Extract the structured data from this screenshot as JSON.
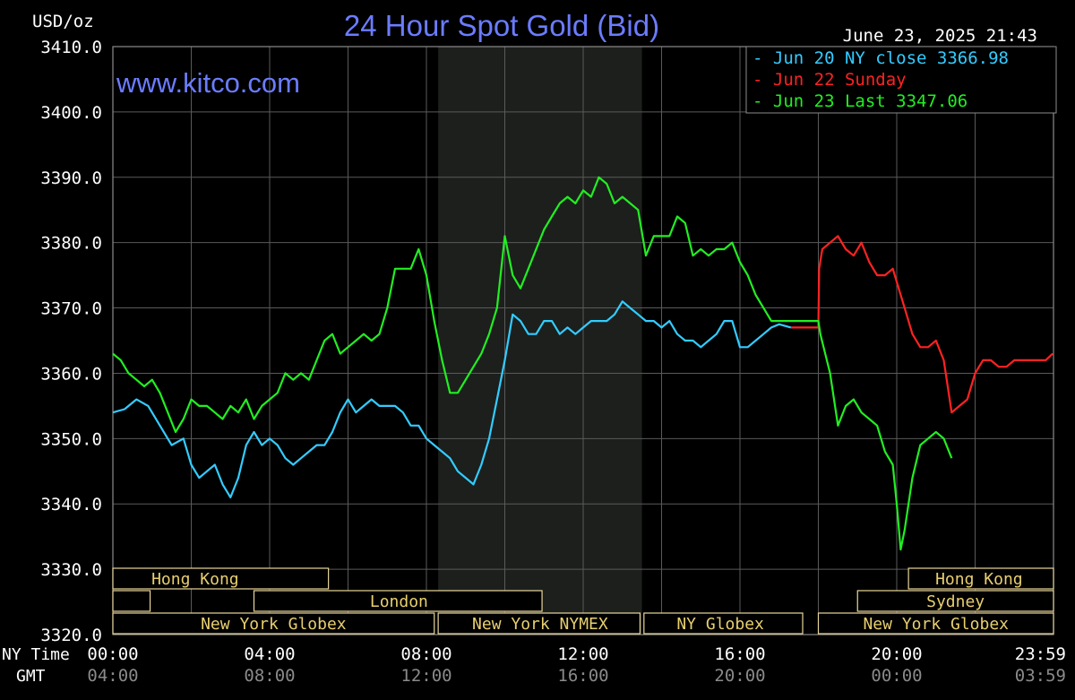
{
  "chart_data": {
    "type": "line",
    "title": "24 Hour Spot Gold (Bid)",
    "unit_label": "USD/oz",
    "timestamp": "June 23, 2025 21:43",
    "watermark": "www.kitco.com",
    "ylim": [
      3320,
      3410
    ],
    "y_ticks": [
      "3410.0",
      "3400.0",
      "3390.0",
      "3380.0",
      "3370.0",
      "3360.0",
      "3350.0",
      "3340.0",
      "3330.0",
      "3320.0"
    ],
    "xlim": [
      0,
      24
    ],
    "x_rows": [
      {
        "label": "NY Time",
        "ticks": [
          "00:00",
          "04:00",
          "08:00",
          "12:00",
          "16:00",
          "20:00",
          "23:59"
        ],
        "color": "#ffffff"
      },
      {
        "label": "GMT",
        "ticks": [
          "04:00",
          "08:00",
          "12:00",
          "16:00",
          "20:00",
          "00:00",
          "03:59"
        ],
        "color": "#8a8a8a"
      }
    ],
    "grid": true,
    "shaded_period": [
      8.3,
      13.5
    ],
    "legend_placement": "top-right",
    "legend": [
      {
        "text": "- Jun 20 NY close 3366.98",
        "color": "#33ccff"
      },
      {
        "text": "- Jun 22 Sunday",
        "color": "#ff2222"
      },
      {
        "text": "- Jun 23 Last 3347.06",
        "color": "#22ee22"
      }
    ],
    "series": [
      {
        "name": "Jun 20 NY close 3366.98",
        "color": "#33ccff",
        "points": [
          [
            0,
            3354
          ],
          [
            0.3,
            3354.5
          ],
          [
            0.6,
            3356
          ],
          [
            0.9,
            3355
          ],
          [
            1.2,
            3352
          ],
          [
            1.5,
            3349
          ],
          [
            1.8,
            3350
          ],
          [
            2.0,
            3346
          ],
          [
            2.2,
            3344
          ],
          [
            2.4,
            3345
          ],
          [
            2.6,
            3346
          ],
          [
            2.8,
            3343
          ],
          [
            3.0,
            3341
          ],
          [
            3.2,
            3344
          ],
          [
            3.4,
            3349
          ],
          [
            3.6,
            3351
          ],
          [
            3.8,
            3349
          ],
          [
            4.0,
            3350
          ],
          [
            4.2,
            3349
          ],
          [
            4.4,
            3347
          ],
          [
            4.6,
            3346
          ],
          [
            4.8,
            3347
          ],
          [
            5.0,
            3348
          ],
          [
            5.2,
            3349
          ],
          [
            5.4,
            3349
          ],
          [
            5.6,
            3351
          ],
          [
            5.8,
            3354
          ],
          [
            6.0,
            3356
          ],
          [
            6.2,
            3354
          ],
          [
            6.4,
            3355
          ],
          [
            6.6,
            3356
          ],
          [
            6.8,
            3355
          ],
          [
            7.0,
            3355
          ],
          [
            7.2,
            3355
          ],
          [
            7.4,
            3354
          ],
          [
            7.6,
            3352
          ],
          [
            7.8,
            3352
          ],
          [
            8.0,
            3350
          ],
          [
            8.2,
            3349
          ],
          [
            8.4,
            3348
          ],
          [
            8.6,
            3347
          ],
          [
            8.8,
            3345
          ],
          [
            9.0,
            3344
          ],
          [
            9.2,
            3343
          ],
          [
            9.4,
            3346
          ],
          [
            9.6,
            3350
          ],
          [
            9.8,
            3356
          ],
          [
            10.0,
            3362
          ],
          [
            10.2,
            3369
          ],
          [
            10.4,
            3368
          ],
          [
            10.6,
            3366
          ],
          [
            10.8,
            3366
          ],
          [
            11.0,
            3368
          ],
          [
            11.2,
            3368
          ],
          [
            11.4,
            3366
          ],
          [
            11.6,
            3367
          ],
          [
            11.8,
            3366
          ],
          [
            12.0,
            3367
          ],
          [
            12.2,
            3368
          ],
          [
            12.4,
            3368
          ],
          [
            12.6,
            3368
          ],
          [
            12.8,
            3369
          ],
          [
            13.0,
            3371
          ],
          [
            13.2,
            3370
          ],
          [
            13.4,
            3369
          ],
          [
            13.6,
            3368
          ],
          [
            13.8,
            3368
          ],
          [
            14.0,
            3367
          ],
          [
            14.2,
            3368
          ],
          [
            14.4,
            3366
          ],
          [
            14.6,
            3365
          ],
          [
            14.8,
            3365
          ],
          [
            15.0,
            3364
          ],
          [
            15.2,
            3365
          ],
          [
            15.4,
            3366
          ],
          [
            15.6,
            3368
          ],
          [
            15.8,
            3368
          ],
          [
            16.0,
            3364
          ],
          [
            16.2,
            3364
          ],
          [
            16.4,
            3365
          ],
          [
            16.6,
            3366
          ],
          [
            16.8,
            3367
          ],
          [
            17.0,
            3367.5
          ],
          [
            17.3,
            3367
          ]
        ]
      },
      {
        "name": "Jun 22 Sunday",
        "color": "#ff2222",
        "points": [
          [
            17.3,
            3367
          ],
          [
            18.0,
            3367
          ],
          [
            18.02,
            3376
          ],
          [
            18.1,
            3379
          ],
          [
            18.3,
            3380
          ],
          [
            18.5,
            3381
          ],
          [
            18.7,
            3379
          ],
          [
            18.9,
            3378
          ],
          [
            19.1,
            3380
          ],
          [
            19.3,
            3377
          ],
          [
            19.5,
            3375
          ],
          [
            19.7,
            3375
          ],
          [
            19.9,
            3376
          ],
          [
            20.0,
            3374
          ],
          [
            20.2,
            3370
          ],
          [
            20.4,
            3366
          ],
          [
            20.6,
            3364
          ],
          [
            20.8,
            3364
          ],
          [
            21.0,
            3365
          ],
          [
            21.2,
            3362
          ],
          [
            21.4,
            3354
          ],
          [
            21.6,
            3355
          ],
          [
            21.8,
            3356
          ],
          [
            22.0,
            3360
          ],
          [
            22.2,
            3362
          ],
          [
            22.4,
            3362
          ],
          [
            22.6,
            3361
          ],
          [
            22.8,
            3361
          ],
          [
            23.0,
            3362
          ],
          [
            23.2,
            3362
          ],
          [
            23.4,
            3362
          ],
          [
            23.6,
            3362
          ],
          [
            23.8,
            3362
          ],
          [
            23.98,
            3363
          ]
        ]
      },
      {
        "name": "Jun 23 Last 3347.06",
        "color": "#22ee22",
        "points": [
          [
            0,
            3363
          ],
          [
            0.2,
            3362
          ],
          [
            0.4,
            3360
          ],
          [
            0.6,
            3359
          ],
          [
            0.8,
            3358
          ],
          [
            1.0,
            3359
          ],
          [
            1.2,
            3357
          ],
          [
            1.4,
            3354
          ],
          [
            1.6,
            3351
          ],
          [
            1.8,
            3353
          ],
          [
            2.0,
            3356
          ],
          [
            2.2,
            3355
          ],
          [
            2.4,
            3355
          ],
          [
            2.6,
            3354
          ],
          [
            2.8,
            3353
          ],
          [
            3.0,
            3355
          ],
          [
            3.2,
            3354
          ],
          [
            3.4,
            3356
          ],
          [
            3.6,
            3353
          ],
          [
            3.8,
            3355
          ],
          [
            4.0,
            3356
          ],
          [
            4.2,
            3357
          ],
          [
            4.4,
            3360
          ],
          [
            4.6,
            3359
          ],
          [
            4.8,
            3360
          ],
          [
            5.0,
            3359
          ],
          [
            5.2,
            3362
          ],
          [
            5.4,
            3365
          ],
          [
            5.6,
            3366
          ],
          [
            5.8,
            3363
          ],
          [
            6.0,
            3364
          ],
          [
            6.2,
            3365
          ],
          [
            6.4,
            3366
          ],
          [
            6.6,
            3365
          ],
          [
            6.8,
            3366
          ],
          [
            7.0,
            3370
          ],
          [
            7.2,
            3376
          ],
          [
            7.4,
            3376
          ],
          [
            7.6,
            3376
          ],
          [
            7.8,
            3379
          ],
          [
            8.0,
            3375
          ],
          [
            8.2,
            3368
          ],
          [
            8.4,
            3362
          ],
          [
            8.6,
            3357
          ],
          [
            8.8,
            3357
          ],
          [
            9.0,
            3359
          ],
          [
            9.2,
            3361
          ],
          [
            9.4,
            3363
          ],
          [
            9.6,
            3366
          ],
          [
            9.8,
            3370
          ],
          [
            10.0,
            3381
          ],
          [
            10.2,
            3375
          ],
          [
            10.4,
            3373
          ],
          [
            10.6,
            3376
          ],
          [
            10.8,
            3379
          ],
          [
            11.0,
            3382
          ],
          [
            11.2,
            3384
          ],
          [
            11.4,
            3386
          ],
          [
            11.6,
            3387
          ],
          [
            11.8,
            3386
          ],
          [
            12.0,
            3388
          ],
          [
            12.2,
            3387
          ],
          [
            12.4,
            3390
          ],
          [
            12.6,
            3389
          ],
          [
            12.8,
            3386
          ],
          [
            13.0,
            3387
          ],
          [
            13.2,
            3386
          ],
          [
            13.4,
            3385
          ],
          [
            13.6,
            3378
          ],
          [
            13.8,
            3381
          ],
          [
            14.0,
            3381
          ],
          [
            14.2,
            3381
          ],
          [
            14.4,
            3384
          ],
          [
            14.6,
            3383
          ],
          [
            14.8,
            3378
          ],
          [
            15.0,
            3379
          ],
          [
            15.2,
            3378
          ],
          [
            15.4,
            3379
          ],
          [
            15.6,
            3379
          ],
          [
            15.8,
            3380
          ],
          [
            16.0,
            3377
          ],
          [
            16.2,
            3375
          ],
          [
            16.4,
            3372
          ],
          [
            16.6,
            3370
          ],
          [
            16.8,
            3368
          ],
          [
            17.0,
            3368
          ],
          [
            17.5,
            3368
          ],
          [
            18.0,
            3368
          ],
          [
            18.05,
            3366
          ],
          [
            18.3,
            3360
          ],
          [
            18.5,
            3352
          ],
          [
            18.7,
            3355
          ],
          [
            18.9,
            3356
          ],
          [
            19.1,
            3354
          ],
          [
            19.3,
            3353
          ],
          [
            19.5,
            3352
          ],
          [
            19.7,
            3348
          ],
          [
            19.9,
            3346
          ],
          [
            20.0,
            3340
          ],
          [
            20.1,
            3333
          ],
          [
            20.2,
            3336
          ],
          [
            20.4,
            3344
          ],
          [
            20.6,
            3349
          ],
          [
            20.8,
            3350
          ],
          [
            21.0,
            3351
          ],
          [
            21.2,
            3350
          ],
          [
            21.4,
            3347
          ]
        ]
      }
    ],
    "session_rows": [
      {
        "row": 0,
        "start": 0.0,
        "end": 5.5,
        "text": "Hong Kong",
        "text_at": 2.1
      },
      {
        "row": 0,
        "start": 20.3,
        "end": 24.0,
        "text": "Hong Kong",
        "text_at": 22.1
      },
      {
        "row": 1,
        "start": 0.0,
        "end": 0.95,
        "text": "",
        "text_at": 0
      },
      {
        "row": 1,
        "start": 3.6,
        "end": 10.95,
        "text": "London",
        "text_at": 7.3
      },
      {
        "row": 1,
        "start": 19.0,
        "end": 24.0,
        "text": "Sydney",
        "text_at": 21.5
      },
      {
        "row": 2,
        "start": 0.0,
        "end": 8.2,
        "text": "New York Globex",
        "text_at": 4.1
      },
      {
        "row": 2,
        "start": 8.3,
        "end": 13.45,
        "text": "New York NYMEX",
        "text_at": 10.9
      },
      {
        "row": 2,
        "start": 13.55,
        "end": 17.6,
        "text": "NY Globex",
        "text_at": 15.5
      },
      {
        "row": 2,
        "start": 18.0,
        "end": 24.0,
        "text": "New York Globex",
        "text_at": 21.0
      }
    ]
  }
}
